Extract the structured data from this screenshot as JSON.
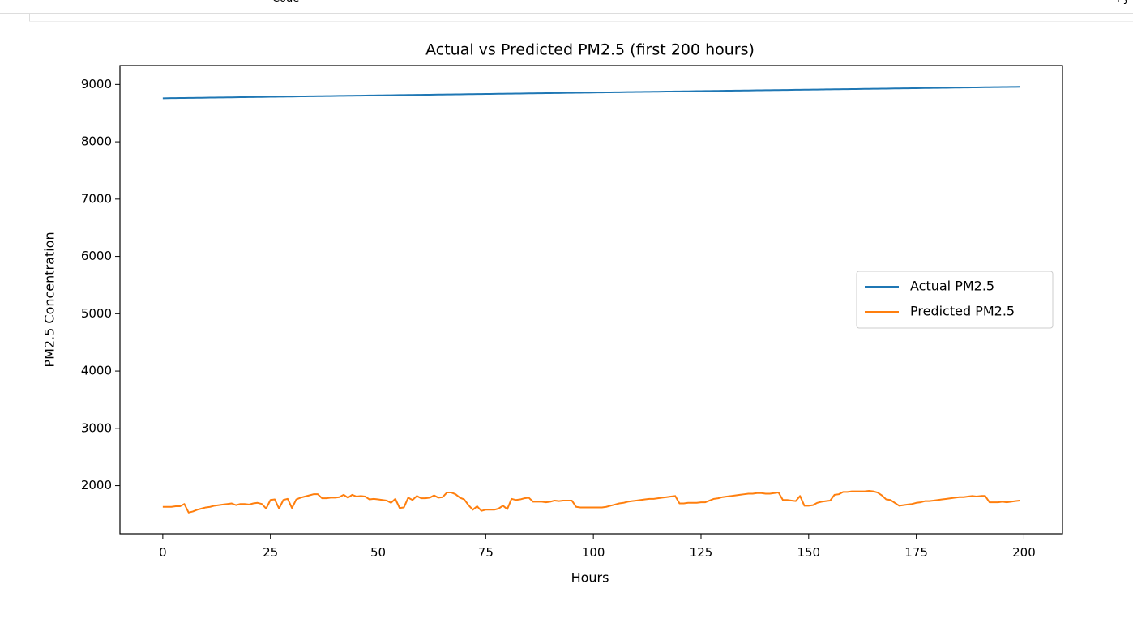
{
  "toolbar": {
    "cell_type": "Code",
    "kernel": "Py"
  },
  "chart_data": {
    "type": "line",
    "title": "Actual vs Predicted PM2.5 (first 200 hours)",
    "x_label": "Hours",
    "y_label": "PM2.5 Concentration",
    "x": [
      0,
      1,
      2,
      3,
      4,
      5,
      6,
      7,
      8,
      9,
      10,
      11,
      12,
      13,
      14,
      15,
      16,
      17,
      18,
      19,
      20,
      21,
      22,
      23,
      24,
      25,
      26,
      27,
      28,
      29,
      30,
      31,
      32,
      33,
      34,
      35,
      36,
      37,
      38,
      39,
      40,
      41,
      42,
      43,
      44,
      45,
      46,
      47,
      48,
      49,
      50,
      51,
      52,
      53,
      54,
      55,
      56,
      57,
      58,
      59,
      60,
      61,
      62,
      63,
      64,
      65,
      66,
      67,
      68,
      69,
      70,
      71,
      72,
      73,
      74,
      75,
      76,
      77,
      78,
      79,
      80,
      81,
      82,
      83,
      84,
      85,
      86,
      87,
      88,
      89,
      90,
      91,
      92,
      93,
      94,
      95,
      96,
      97,
      98,
      99,
      100,
      101,
      102,
      103,
      104,
      105,
      106,
      107,
      108,
      109,
      110,
      111,
      112,
      113,
      114,
      115,
      116,
      117,
      118,
      119,
      120,
      121,
      122,
      123,
      124,
      125,
      126,
      127,
      128,
      129,
      130,
      131,
      132,
      133,
      134,
      135,
      136,
      137,
      138,
      139,
      140,
      141,
      142,
      143,
      144,
      145,
      146,
      147,
      148,
      149,
      150,
      151,
      152,
      153,
      154,
      155,
      156,
      157,
      158,
      159,
      160,
      161,
      162,
      163,
      164,
      165,
      166,
      167,
      168,
      169,
      170,
      171,
      172,
      173,
      174,
      175,
      176,
      177,
      178,
      179,
      180,
      181,
      182,
      183,
      184,
      185,
      186,
      187,
      188,
      189,
      190,
      191,
      192,
      193,
      194,
      195,
      196,
      197,
      198,
      199
    ],
    "series": [
      {
        "name": "Actual PM2.5",
        "color": "#1f77b4",
        "values": [
          8760,
          8761,
          8762,
          8763,
          8764,
          8765,
          8766,
          8767,
          8768,
          8769,
          8770,
          8771,
          8772,
          8773,
          8774,
          8775,
          8776,
          8777,
          8778,
          8779,
          8780,
          8781,
          8782,
          8783,
          8784,
          8785,
          8786,
          8787,
          8788,
          8789,
          8790,
          8791,
          8792,
          8793,
          8794,
          8795,
          8796,
          8797,
          8798,
          8799,
          8800,
          8801,
          8802,
          8803,
          8804,
          8805,
          8806,
          8807,
          8808,
          8809,
          8810,
          8811,
          8812,
          8813,
          8814,
          8815,
          8816,
          8817,
          8818,
          8819,
          8820,
          8821,
          8822,
          8823,
          8824,
          8825,
          8826,
          8827,
          8828,
          8829,
          8830,
          8831,
          8832,
          8833,
          8834,
          8835,
          8836,
          8837,
          8838,
          8839,
          8840,
          8841,
          8842,
          8843,
          8844,
          8845,
          8846,
          8847,
          8848,
          8849,
          8850,
          8851,
          8852,
          8853,
          8854,
          8855,
          8856,
          8857,
          8858,
          8859,
          8860,
          8861,
          8862,
          8863,
          8864,
          8865,
          8866,
          8867,
          8868,
          8869,
          8870,
          8871,
          8872,
          8873,
          8874,
          8875,
          8876,
          8877,
          8878,
          8879,
          8880,
          8881,
          8882,
          8883,
          8884,
          8885,
          8886,
          8887,
          8888,
          8889,
          8890,
          8891,
          8892,
          8893,
          8894,
          8895,
          8896,
          8897,
          8898,
          8899,
          8900,
          8901,
          8902,
          8903,
          8904,
          8905,
          8906,
          8907,
          8908,
          8909,
          8910,
          8911,
          8912,
          8913,
          8914,
          8915,
          8916,
          8917,
          8918,
          8919,
          8920,
          8921,
          8922,
          8923,
          8924,
          8925,
          8926,
          8927,
          8928,
          8929,
          8930,
          8931,
          8932,
          8933,
          8934,
          8935,
          8936,
          8937,
          8938,
          8939,
          8940,
          8941,
          8942,
          8943,
          8944,
          8945,
          8946,
          8947,
          8948,
          8949,
          8950,
          8951,
          8952,
          8953,
          8954,
          8955,
          8956,
          8957,
          8958,
          8959
        ]
      },
      {
        "name": "Predicted PM2.5",
        "color": "#ff7f0e",
        "values": [
          1630,
          1630,
          1630,
          1640,
          1640,
          1680,
          1530,
          1550,
          1580,
          1600,
          1620,
          1630,
          1650,
          1660,
          1670,
          1680,
          1690,
          1660,
          1680,
          1680,
          1670,
          1690,
          1700,
          1680,
          1600,
          1750,
          1760,
          1600,
          1750,
          1770,
          1610,
          1760,
          1790,
          1810,
          1830,
          1850,
          1850,
          1780,
          1780,
          1790,
          1790,
          1800,
          1840,
          1790,
          1840,
          1810,
          1820,
          1810,
          1760,
          1770,
          1760,
          1750,
          1740,
          1700,
          1770,
          1610,
          1620,
          1790,
          1750,
          1820,
          1780,
          1780,
          1790,
          1830,
          1790,
          1800,
          1880,
          1880,
          1850,
          1790,
          1760,
          1660,
          1580,
          1640,
          1560,
          1580,
          1580,
          1580,
          1600,
          1650,
          1590,
          1770,
          1750,
          1760,
          1780,
          1790,
          1720,
          1720,
          1720,
          1710,
          1720,
          1740,
          1730,
          1740,
          1740,
          1740,
          1630,
          1620,
          1620,
          1620,
          1620,
          1620,
          1620,
          1630,
          1650,
          1670,
          1690,
          1700,
          1720,
          1730,
          1740,
          1750,
          1760,
          1770,
          1770,
          1780,
          1790,
          1800,
          1810,
          1820,
          1690,
          1690,
          1700,
          1700,
          1700,
          1710,
          1710,
          1740,
          1770,
          1780,
          1800,
          1810,
          1820,
          1830,
          1840,
          1850,
          1860,
          1860,
          1870,
          1870,
          1860,
          1860,
          1870,
          1880,
          1750,
          1750,
          1740,
          1730,
          1820,
          1650,
          1650,
          1660,
          1700,
          1720,
          1730,
          1740,
          1840,
          1850,
          1890,
          1890,
          1900,
          1900,
          1900,
          1900,
          1910,
          1900,
          1880,
          1830,
          1760,
          1750,
          1700,
          1650,
          1660,
          1670,
          1680,
          1700,
          1710,
          1730,
          1730,
          1740,
          1750,
          1760,
          1770,
          1780,
          1790,
          1800,
          1800,
          1810,
          1820,
          1810,
          1820,
          1820,
          1710,
          1710,
          1710,
          1720,
          1710,
          1720,
          1730,
          1740
        ]
      }
    ],
    "xlim": [
      -9.95,
      208.95
    ],
    "ylim": [
      1160,
      9330
    ],
    "xticks": [
      0,
      25,
      50,
      75,
      100,
      125,
      150,
      175,
      200
    ],
    "yticks": [
      2000,
      3000,
      4000,
      5000,
      6000,
      7000,
      8000,
      9000
    ],
    "legend": "center right",
    "grid": false
  }
}
